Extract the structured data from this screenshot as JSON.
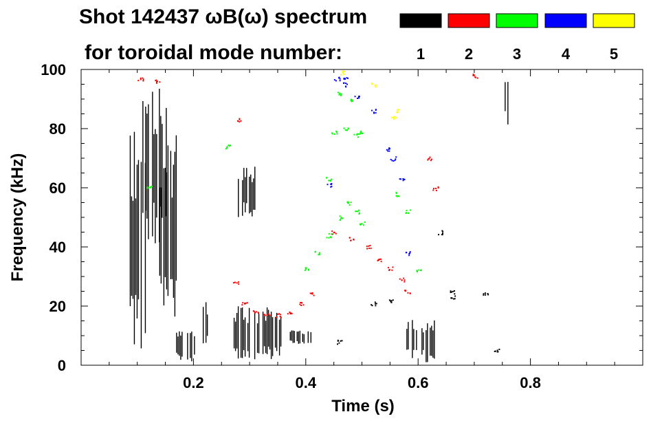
{
  "title": "Shot 142437 ωB(ω) spectrum",
  "subtitle": "for toroidal mode number:",
  "chart_data": {
    "type": "scatter",
    "title": "Shot 142437 ωB(ω) spectrum",
    "xlabel": "Time (s)",
    "ylabel": "Frequency (kHz)",
    "xlim": [
      0.0,
      1.0
    ],
    "ylim": [
      0,
      100
    ],
    "x_ticks": [
      0.2,
      0.4,
      0.6,
      0.8
    ],
    "x_tick_labels": [
      "0.2",
      "0.4",
      "0.6",
      "0.8"
    ],
    "y_ticks": [
      0,
      20,
      40,
      60,
      80,
      100
    ],
    "y_tick_labels": [
      "0",
      "20",
      "40",
      "60",
      "80",
      "100"
    ],
    "grid": false,
    "legend_position": "top-right",
    "series": [
      {
        "name": "1",
        "color": "#000000",
        "regions": [
          {
            "x0": 0.085,
            "x1": 0.12,
            "y0": 2,
            "y1": 82
          },
          {
            "x0": 0.11,
            "x1": 0.155,
            "y0": 40,
            "y1": 95
          },
          {
            "x0": 0.14,
            "x1": 0.17,
            "y0": 15,
            "y1": 78
          },
          {
            "x0": 0.17,
            "x1": 0.205,
            "y0": 1,
            "y1": 12
          },
          {
            "x0": 0.215,
            "x1": 0.225,
            "y0": 5,
            "y1": 22
          },
          {
            "x0": 0.27,
            "x1": 0.36,
            "y0": 2,
            "y1": 20
          },
          {
            "x0": 0.28,
            "x1": 0.31,
            "y0": 50,
            "y1": 68
          },
          {
            "x0": 0.37,
            "x1": 0.41,
            "y0": 7,
            "y1": 12
          },
          {
            "x0": 0.58,
            "x1": 0.63,
            "y0": 1,
            "y1": 16
          },
          {
            "x0": 0.755,
            "x1": 0.76,
            "y0": 80,
            "y1": 100
          }
        ],
        "points": [
          {
            "x": 0.55,
            "y": 22
          },
          {
            "x": 0.52,
            "y": 21
          },
          {
            "x": 0.66,
            "y": 25
          },
          {
            "x": 0.66,
            "y": 23
          },
          {
            "x": 0.64,
            "y": 45
          },
          {
            "x": 0.74,
            "y": 5
          },
          {
            "x": 0.72,
            "y": 24
          },
          {
            "x": 0.46,
            "y": 8
          }
        ]
      },
      {
        "name": "2",
        "color": "#ff0000",
        "points": [
          {
            "x": 0.275,
            "y": 28
          },
          {
            "x": 0.29,
            "y": 21
          },
          {
            "x": 0.31,
            "y": 18
          },
          {
            "x": 0.33,
            "y": 17
          },
          {
            "x": 0.35,
            "y": 17
          },
          {
            "x": 0.37,
            "y": 18
          },
          {
            "x": 0.39,
            "y": 21
          },
          {
            "x": 0.41,
            "y": 24
          },
          {
            "x": 0.45,
            "y": 45
          },
          {
            "x": 0.48,
            "y": 43
          },
          {
            "x": 0.51,
            "y": 40
          },
          {
            "x": 0.53,
            "y": 36
          },
          {
            "x": 0.55,
            "y": 33
          },
          {
            "x": 0.57,
            "y": 29
          },
          {
            "x": 0.58,
            "y": 25
          },
          {
            "x": 0.28,
            "y": 83
          },
          {
            "x": 0.105,
            "y": 97
          },
          {
            "x": 0.7,
            "y": 98
          },
          {
            "x": 0.62,
            "y": 70
          },
          {
            "x": 0.63,
            "y": 60
          },
          {
            "x": 0.135,
            "y": 96
          }
        ]
      },
      {
        "name": "3",
        "color": "#00ff00",
        "points": [
          {
            "x": 0.4,
            "y": 33
          },
          {
            "x": 0.42,
            "y": 38
          },
          {
            "x": 0.44,
            "y": 44
          },
          {
            "x": 0.46,
            "y": 50
          },
          {
            "x": 0.475,
            "y": 55
          },
          {
            "x": 0.49,
            "y": 52
          },
          {
            "x": 0.5,
            "y": 48
          },
          {
            "x": 0.45,
            "y": 79
          },
          {
            "x": 0.47,
            "y": 80
          },
          {
            "x": 0.49,
            "y": 78
          },
          {
            "x": 0.5,
            "y": 79
          },
          {
            "x": 0.46,
            "y": 92
          },
          {
            "x": 0.48,
            "y": 90
          },
          {
            "x": 0.44,
            "y": 63
          },
          {
            "x": 0.56,
            "y": 58
          },
          {
            "x": 0.58,
            "y": 52
          },
          {
            "x": 0.6,
            "y": 32
          },
          {
            "x": 0.26,
            "y": 74
          },
          {
            "x": 0.12,
            "y": 60
          }
        ]
      },
      {
        "name": "4",
        "color": "#0000ff",
        "points": [
          {
            "x": 0.455,
            "y": 97
          },
          {
            "x": 0.47,
            "y": 95
          },
          {
            "x": 0.49,
            "y": 91
          },
          {
            "x": 0.52,
            "y": 86
          },
          {
            "x": 0.545,
            "y": 73
          },
          {
            "x": 0.555,
            "y": 70
          },
          {
            "x": 0.57,
            "y": 63
          },
          {
            "x": 0.44,
            "y": 61
          },
          {
            "x": 0.58,
            "y": 38
          },
          {
            "x": 0.47,
            "y": 97
          }
        ]
      },
      {
        "name": "5",
        "color": "#ffff00",
        "points": [
          {
            "x": 0.465,
            "y": 99
          },
          {
            "x": 0.52,
            "y": 95
          },
          {
            "x": 0.555,
            "y": 84
          },
          {
            "x": 0.56,
            "y": 86
          }
        ]
      }
    ]
  }
}
